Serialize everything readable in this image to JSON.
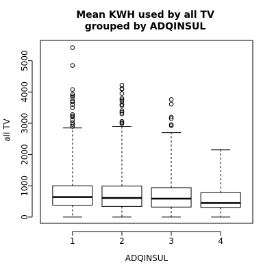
{
  "chart_data": {
    "type": "boxplot",
    "title_line1": "Mean KWH used by all TV",
    "title_line2": "grouped by ADQINSUL",
    "xlabel": "ADQINSUL",
    "ylabel": "all TV",
    "categories": [
      "1",
      "2",
      "3",
      "4"
    ],
    "y_ticks": [
      0,
      1000,
      2000,
      3000,
      4000,
      5000
    ],
    "ylim": [
      -200,
      5650
    ],
    "boxes": [
      {
        "category": "1",
        "min": 0,
        "q1": 380,
        "median": 640,
        "q3": 1000,
        "max": 2850,
        "outliers": [
          5420,
          4850,
          4080,
          3930,
          3880,
          3830,
          3720,
          3680,
          3600,
          3500,
          3280,
          3240,
          3200,
          3100,
          3020,
          2960,
          2900
        ]
      },
      {
        "category": "2",
        "min": 0,
        "q1": 340,
        "median": 610,
        "q3": 990,
        "max": 2900,
        "outliers": [
          4220,
          4110,
          4090,
          3950,
          3800,
          3750,
          3700,
          3600,
          3560,
          3400,
          3350,
          3300,
          3060,
          3020,
          2990
        ]
      },
      {
        "category": "3",
        "min": 0,
        "q1": 320,
        "median": 590,
        "q3": 940,
        "max": 2700,
        "outliers": [
          3760,
          3610,
          3200,
          3150,
          2960,
          2920
        ]
      },
      {
        "category": "4",
        "min": 0,
        "q1": 310,
        "median": 450,
        "q3": 780,
        "max": 2150,
        "outliers": []
      }
    ]
  }
}
